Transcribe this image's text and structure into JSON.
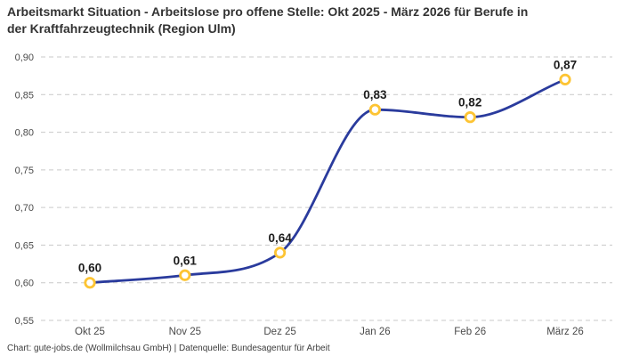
{
  "footer": {
    "credit": "Chart: gute-jobs.de (Wollmilchsau GmbH) | Datenquelle: Bundesagentur für Arbeit"
  },
  "chart_data": {
    "type": "line",
    "title": "Arbeitsmarkt Situation - Arbeitslose pro offene Stelle: Okt 2025 - März 2026 für Berufe in der Kraftfahrzeugtechnik (Region Ulm)",
    "categories": [
      "Okt 25",
      "Nov 25",
      "Dez 25",
      "Jan 26",
      "Feb 26",
      "März 26"
    ],
    "values": [
      0.6,
      0.61,
      0.64,
      0.83,
      0.82,
      0.87
    ],
    "point_labels": [
      "0,60",
      "0,61",
      "0,64",
      "0,83",
      "0,82",
      "0,87"
    ],
    "xlabel": "",
    "ylabel": "",
    "ylim": [
      0.55,
      0.9
    ],
    "ytick_values": [
      0.55,
      0.6,
      0.65,
      0.7,
      0.75,
      0.8,
      0.85,
      0.9
    ],
    "ytick_labels": [
      "0,55",
      "0,60",
      "0,65",
      "0,70",
      "0,75",
      "0,80",
      "0,85",
      "0,90"
    ],
    "grid": "horizontal-dashed",
    "legend": "none",
    "line_style": "smooth-monotone",
    "colors": {
      "line": "#2a3b9d",
      "marker_ring": "#fdc433",
      "marker_fill": "#ffffff",
      "grid": "#c9c9c9",
      "point_label": "#1d1d1d",
      "axis_text": "#4a4a4a",
      "title_text": "#333333",
      "background": "#ffffff"
    }
  }
}
